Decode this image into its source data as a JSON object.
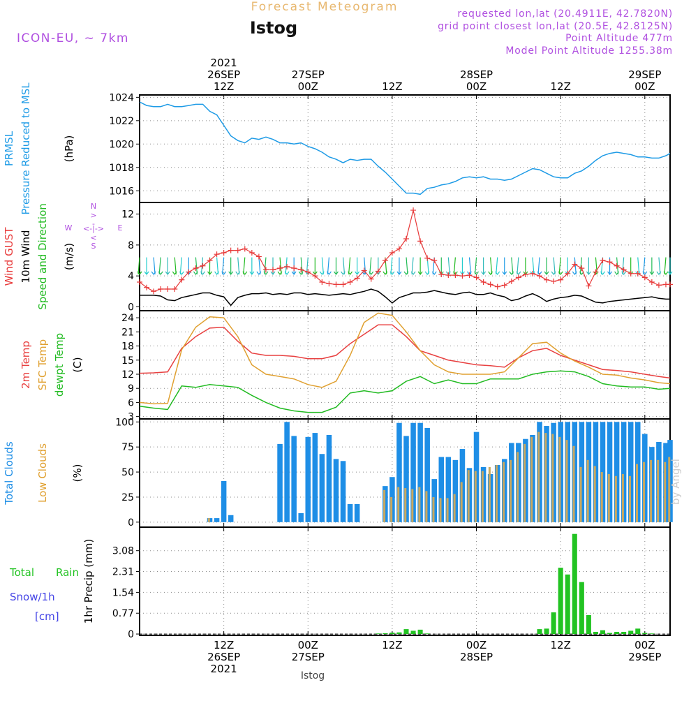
{
  "header": {
    "title_top": "Forecast Meteogram",
    "station": "Istog",
    "model": "ICON-EU, ~ 7km",
    "requested": "requested lon,lat (20.4911E, 42.7820N)",
    "grid_point": "grid point closest lon,lat (20.5E, 42.8125N)",
    "point_altitude": "Point Altitude 477m",
    "model_altitude": "Model Point Altitude 1255.38m",
    "footer_station": "Istog",
    "watermark": "by Angel"
  },
  "colors": {
    "pressure": "#1e9be6",
    "gust": "#e83a3a",
    "wind10": "#000000",
    "arrows_label": "#22bb22",
    "temp2m": "#e84040",
    "sfc": "#e0a030",
    "dew": "#22bb22",
    "total_clouds": "#1e8ee6",
    "low_clouds": "#c8a860",
    "rain": "#22c322",
    "snow": "#4444e6",
    "purple": "#b050e0",
    "title": "#e8b870"
  },
  "time_axis": {
    "top": [
      {
        "t": 18,
        "lines": [
          "2021",
          "26SEP",
          "12Z"
        ]
      },
      {
        "t": 30,
        "lines": [
          "27SEP",
          "00Z"
        ]
      },
      {
        "t": 42,
        "lines": [
          "12Z"
        ]
      },
      {
        "t": 54,
        "lines": [
          "28SEP",
          "00Z"
        ]
      },
      {
        "t": 66,
        "lines": [
          "12Z"
        ]
      },
      {
        "t": 78,
        "lines": [
          "29SEP",
          "00Z"
        ]
      }
    ],
    "bottom": [
      {
        "t": 18,
        "lines": [
          "12Z",
          "26SEP",
          "2021"
        ]
      },
      {
        "t": 30,
        "lines": [
          "00Z",
          "27SEP"
        ]
      },
      {
        "t": 42,
        "lines": [
          "12Z"
        ]
      },
      {
        "t": 54,
        "lines": [
          "00Z",
          "28SEP"
        ]
      },
      {
        "t": 66,
        "lines": [
          "12Z"
        ]
      },
      {
        "t": 78,
        "lines": [
          "00Z",
          "29SEP"
        ]
      }
    ],
    "t_range": [
      6,
      81.6
    ]
  },
  "chart_data": [
    {
      "id": "pressure",
      "type": "line",
      "ylabel_lines": [
        "PRMSL",
        "Pressure Reduced to MSL"
      ],
      "unit": "(hPa)",
      "ylim": [
        1015,
        1024.2
      ],
      "yticks": [
        1016,
        1018,
        1020,
        1022,
        1024
      ],
      "x": [
        6,
        7,
        8,
        9,
        10,
        11,
        12,
        13,
        14,
        15,
        16,
        17,
        18,
        19,
        20,
        21,
        22,
        23,
        24,
        25,
        26,
        27,
        28,
        29,
        30,
        31,
        32,
        33,
        34,
        35,
        36,
        37,
        38,
        39,
        40,
        41,
        42,
        43,
        44,
        45,
        46,
        47,
        48,
        49,
        50,
        51,
        52,
        53,
        54,
        55,
        56,
        57,
        58,
        59,
        60,
        61,
        62,
        63,
        64,
        65,
        66,
        67,
        68,
        69,
        70,
        71,
        72,
        73,
        74,
        75,
        76,
        77,
        78,
        79,
        80,
        81,
        81.6
      ],
      "values": [
        1023.6,
        1023.3,
        1023.2,
        1023.2,
        1023.4,
        1023.2,
        1023.2,
        1023.3,
        1023.4,
        1023.4,
        1022.8,
        1022.5,
        1021.6,
        1020.7,
        1020.3,
        1020.1,
        1020.5,
        1020.4,
        1020.6,
        1020.4,
        1020.1,
        1020.1,
        1020.0,
        1020.1,
        1019.8,
        1019.6,
        1019.3,
        1018.9,
        1018.7,
        1018.4,
        1018.7,
        1018.6,
        1018.7,
        1018.7,
        1018.1,
        1017.6,
        1017.0,
        1016.4,
        1015.8,
        1015.8,
        1015.7,
        1016.2,
        1016.3,
        1016.5,
        1016.6,
        1016.8,
        1017.1,
        1017.2,
        1017.1,
        1017.2,
        1017.0,
        1017.0,
        1016.9,
        1017.0,
        1017.3,
        1017.6,
        1017.9,
        1017.8,
        1017.5,
        1017.2,
        1017.1,
        1017.1,
        1017.5,
        1017.7,
        1018.1,
        1018.6,
        1019.0,
        1019.2,
        1019.3,
        1019.2,
        1019.1,
        1018.9,
        1018.9,
        1018.8,
        1018.8,
        1019.0,
        1019.2
      ]
    },
    {
      "id": "wind",
      "type": "line",
      "ylabel_lines": [
        "Wind GUST",
        "10m Wind",
        "Speed and Direction"
      ],
      "unit": "(m/s)",
      "ylim": [
        -0.5,
        13.5
      ],
      "yticks": [
        0,
        4,
        8,
        12
      ],
      "x": [
        6,
        7,
        8,
        9,
        10,
        11,
        12,
        13,
        14,
        15,
        16,
        17,
        18,
        19,
        20,
        21,
        22,
        23,
        24,
        25,
        26,
        27,
        28,
        29,
        30,
        31,
        32,
        33,
        34,
        35,
        36,
        37,
        38,
        39,
        40,
        41,
        42,
        43,
        44,
        45,
        46,
        47,
        48,
        49,
        50,
        51,
        52,
        53,
        54,
        55,
        56,
        57,
        58,
        59,
        60,
        61,
        62,
        63,
        64,
        65,
        66,
        67,
        68,
        69,
        70,
        71,
        72,
        73,
        74,
        75,
        76,
        77,
        78,
        79,
        80,
        81,
        81.6
      ],
      "series": [
        {
          "name": "Wind GUST",
          "values": [
            3.2,
            2.5,
            2.0,
            2.3,
            2.3,
            2.3,
            3.5,
            4.5,
            5.0,
            5.3,
            6.0,
            6.8,
            7.0,
            7.3,
            7.3,
            7.5,
            7.0,
            6.5,
            4.8,
            4.8,
            5.0,
            5.2,
            5.0,
            4.8,
            4.5,
            4.0,
            3.2,
            3.0,
            2.9,
            2.9,
            3.2,
            3.7,
            4.7,
            3.6,
            4.6,
            6.0,
            7.0,
            7.5,
            8.8,
            12.5,
            8.5,
            6.3,
            6.0,
            4.2,
            4.1,
            4.1,
            4.0,
            4.1,
            3.8,
            3.2,
            2.9,
            2.6,
            2.8,
            3.3,
            3.8,
            4.2,
            4.3,
            4.0,
            3.5,
            3.3,
            3.5,
            4.3,
            5.5,
            5.0,
            2.7,
            4.5,
            6.0,
            5.8,
            5.3,
            4.8,
            4.3,
            4.3,
            3.8,
            3.2,
            2.8,
            2.9,
            2.9
          ]
        },
        {
          "name": "10m Wind",
          "values": [
            1.5,
            1.5,
            1.5,
            1.4,
            0.9,
            0.8,
            1.2,
            1.4,
            1.6,
            1.8,
            1.8,
            1.5,
            1.3,
            0.2,
            1.2,
            1.5,
            1.7,
            1.7,
            1.8,
            1.6,
            1.7,
            1.6,
            1.8,
            1.8,
            1.6,
            1.7,
            1.6,
            1.5,
            1.6,
            1.7,
            1.6,
            1.8,
            2.0,
            2.3,
            2.0,
            1.3,
            0.5,
            1.2,
            1.5,
            1.8,
            1.8,
            1.9,
            2.1,
            1.9,
            1.7,
            1.6,
            1.8,
            1.9,
            1.6,
            1.6,
            1.8,
            1.5,
            1.3,
            0.8,
            1.0,
            1.4,
            1.7,
            1.3,
            0.7,
            1.0,
            1.2,
            1.3,
            1.5,
            1.4,
            1.0,
            0.6,
            0.5,
            0.7,
            0.8,
            0.9,
            1.0,
            1.1,
            1.2,
            1.3,
            1.1,
            1.0,
            1.0
          ]
        }
      ]
    },
    {
      "id": "temperature",
      "type": "line",
      "ylabel_lines": [
        "2m Temp",
        "SFC Temp",
        "dewpt Temp"
      ],
      "unit": "(C)",
      "ylim": [
        2.5,
        25.5
      ],
      "yticks": [
        3,
        6,
        9,
        12,
        15,
        18,
        21,
        24
      ],
      "x": [
        6,
        8,
        10,
        12,
        14,
        16,
        18,
        20,
        22,
        24,
        26,
        28,
        30,
        32,
        34,
        36,
        38,
        40,
        42,
        44,
        46,
        48,
        50,
        52,
        54,
        56,
        58,
        60,
        62,
        64,
        66,
        68,
        70,
        72,
        74,
        76,
        78,
        80,
        81.6
      ],
      "series": [
        {
          "name": "2m Temp",
          "values": [
            12.2,
            12.3,
            12.5,
            17.5,
            20.0,
            21.8,
            22.0,
            19.0,
            16.5,
            16.0,
            16.0,
            15.8,
            15.3,
            15.3,
            16.0,
            18.5,
            20.5,
            22.5,
            22.5,
            20.0,
            17.0,
            16.0,
            15.0,
            14.5,
            14.0,
            13.8,
            13.5,
            15.5,
            17.0,
            17.5,
            16.0,
            15.0,
            14.0,
            13.0,
            12.8,
            12.5,
            12.0,
            11.5,
            11.2
          ]
        },
        {
          "name": "SFC Temp",
          "values": [
            6.0,
            5.7,
            5.8,
            17.2,
            22.0,
            24.2,
            24.0,
            20.0,
            14.0,
            12.0,
            11.5,
            11.0,
            9.8,
            9.2,
            10.5,
            16.0,
            23.0,
            25.0,
            24.5,
            21.0,
            17.0,
            14.0,
            12.5,
            12.0,
            12.0,
            12.0,
            12.5,
            15.5,
            18.5,
            18.8,
            16.5,
            14.8,
            13.5,
            12.0,
            11.8,
            11.2,
            10.8,
            10.2,
            10.0
          ]
        },
        {
          "name": "dewpt Temp",
          "values": [
            5.2,
            4.8,
            4.5,
            9.5,
            9.2,
            9.8,
            9.5,
            9.2,
            7.5,
            6.0,
            4.8,
            4.2,
            3.9,
            3.9,
            5.0,
            8.0,
            8.5,
            8.0,
            8.5,
            10.5,
            11.5,
            10.0,
            10.8,
            10.0,
            10.0,
            11.0,
            11.0,
            11.0,
            12.0,
            12.5,
            12.7,
            12.5,
            11.5,
            10.0,
            9.5,
            9.3,
            9.3,
            8.8,
            9.0
          ]
        }
      ]
    },
    {
      "id": "clouds",
      "type": "bar",
      "ylabel_lines": [
        "Total Clouds",
        "Low Clouds"
      ],
      "unit": "(%)",
      "ylim": [
        -5,
        103
      ],
      "yticks": [
        0,
        25,
        50,
        75,
        100
      ],
      "x": [
        16,
        17,
        18,
        19,
        20,
        21,
        22,
        23,
        24,
        25,
        26,
        27,
        28,
        29,
        30,
        31,
        32,
        33,
        34,
        35,
        36,
        37,
        38,
        39,
        40,
        41,
        42,
        43,
        44,
        45,
        46,
        47,
        48,
        49,
        50,
        51,
        52,
        53,
        54,
        55,
        56,
        57,
        58,
        59,
        60,
        61,
        62,
        63,
        64,
        65,
        66,
        67,
        68,
        69,
        70,
        71,
        72,
        73,
        74,
        75,
        76,
        77,
        78,
        79,
        80,
        81,
        81.6
      ],
      "series": [
        {
          "name": "Total Clouds",
          "values": [
            4,
            4,
            41,
            7,
            0,
            0,
            0,
            0,
            0,
            0,
            78,
            100,
            86,
            9,
            85,
            89,
            68,
            87,
            63,
            61,
            18,
            18,
            0,
            0,
            0,
            36,
            45,
            99,
            86,
            99,
            99,
            94,
            43,
            65,
            65,
            62,
            73,
            54,
            90,
            55,
            48,
            57,
            63,
            79,
            79,
            83,
            87,
            100,
            96,
            99,
            100,
            100,
            100,
            100,
            100,
            100,
            100,
            100,
            100,
            100,
            100,
            100,
            88,
            75,
            80,
            79,
            82
          ]
        },
        {
          "name": "Low Clouds",
          "values": [
            4,
            0,
            0,
            0,
            0,
            0,
            0,
            0,
            0,
            0,
            0,
            0,
            0,
            0,
            0,
            0,
            0,
            0,
            0,
            0,
            0,
            0,
            0,
            0,
            0,
            32,
            25,
            35,
            34,
            33,
            35,
            31,
            25,
            24,
            24,
            28,
            40,
            52,
            51,
            51,
            55,
            57,
            60,
            62,
            70,
            78,
            85,
            90,
            89,
            88,
            85,
            82,
            76,
            55,
            62,
            56,
            50,
            48,
            46,
            48,
            46,
            58,
            60,
            62,
            62,
            60,
            65
          ]
        }
      ]
    },
    {
      "id": "precip",
      "type": "bar",
      "ylabel_lines": [
        "1hr Precip (mm)"
      ],
      "left_labels": [
        "Total",
        "Rain",
        "Snow/1h",
        "[cm]"
      ],
      "ylim": [
        -0.05,
        3.95
      ],
      "yticks": [
        0,
        0.77,
        1.54,
        2.31,
        3.08
      ],
      "x": [
        40,
        41,
        42,
        43,
        44,
        45,
        46,
        47,
        63,
        64,
        65,
        66,
        67,
        68,
        69,
        70,
        71,
        72,
        73,
        74,
        75,
        76,
        77,
        78,
        79
      ],
      "values": [
        0.02,
        0.03,
        0.05,
        0.06,
        0.18,
        0.12,
        0.16,
        0.02,
        0.18,
        0.2,
        0.8,
        2.45,
        2.2,
        3.7,
        1.92,
        0.7,
        0.08,
        0.14,
        0.04,
        0.08,
        0.08,
        0.12,
        0.2,
        0.04,
        0.02
      ]
    }
  ]
}
